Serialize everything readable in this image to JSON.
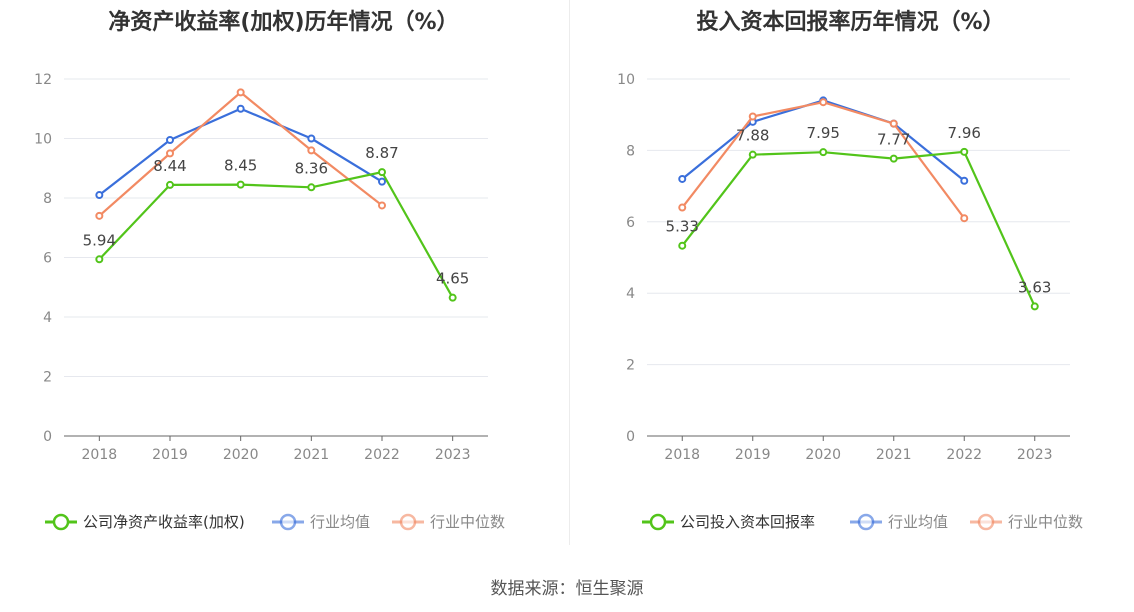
{
  "chart_data": [
    {
      "type": "line",
      "title": "净资产收益率(加权)历年情况（%）",
      "categories": [
        "2018",
        "2019",
        "2020",
        "2021",
        "2022",
        "2023"
      ],
      "ylim": [
        0,
        12
      ],
      "yticks": [
        0,
        2,
        4,
        6,
        8,
        10,
        12
      ],
      "grid": true,
      "legend_position": "bottom",
      "series": [
        {
          "name": "公司净资产收益率(加权)",
          "color": "#52c41a",
          "values": [
            5.94,
            8.44,
            8.45,
            8.36,
            8.87,
            4.65
          ],
          "labeled": true
        },
        {
          "name": "行业均值",
          "color": "#3a6fdb",
          "values": [
            8.1,
            9.95,
            11.0,
            10.0,
            8.55,
            null
          ],
          "labeled": false
        },
        {
          "name": "行业中位数",
          "color": "#f28a63",
          "values": [
            7.4,
            9.5,
            11.55,
            9.6,
            7.75,
            null
          ],
          "labeled": false
        }
      ]
    },
    {
      "type": "line",
      "title": "投入资本回报率历年情况（%）",
      "categories": [
        "2018",
        "2019",
        "2020",
        "2021",
        "2022",
        "2023"
      ],
      "ylim": [
        0,
        10
      ],
      "yticks": [
        0,
        2,
        4,
        6,
        8,
        10
      ],
      "grid": true,
      "legend_position": "bottom",
      "series": [
        {
          "name": "公司投入资本回报率",
          "color": "#52c41a",
          "values": [
            5.33,
            7.88,
            7.95,
            7.77,
            7.96,
            3.63
          ],
          "labeled": true
        },
        {
          "name": "行业均值",
          "color": "#3a6fdb",
          "values": [
            7.2,
            8.8,
            9.4,
            8.75,
            7.15,
            null
          ],
          "labeled": false
        },
        {
          "name": "行业中位数",
          "color": "#f28a63",
          "values": [
            6.4,
            8.95,
            9.35,
            8.75,
            6.1,
            null
          ],
          "labeled": false
        }
      ]
    }
  ],
  "source_text": "数据来源：恒生聚源"
}
